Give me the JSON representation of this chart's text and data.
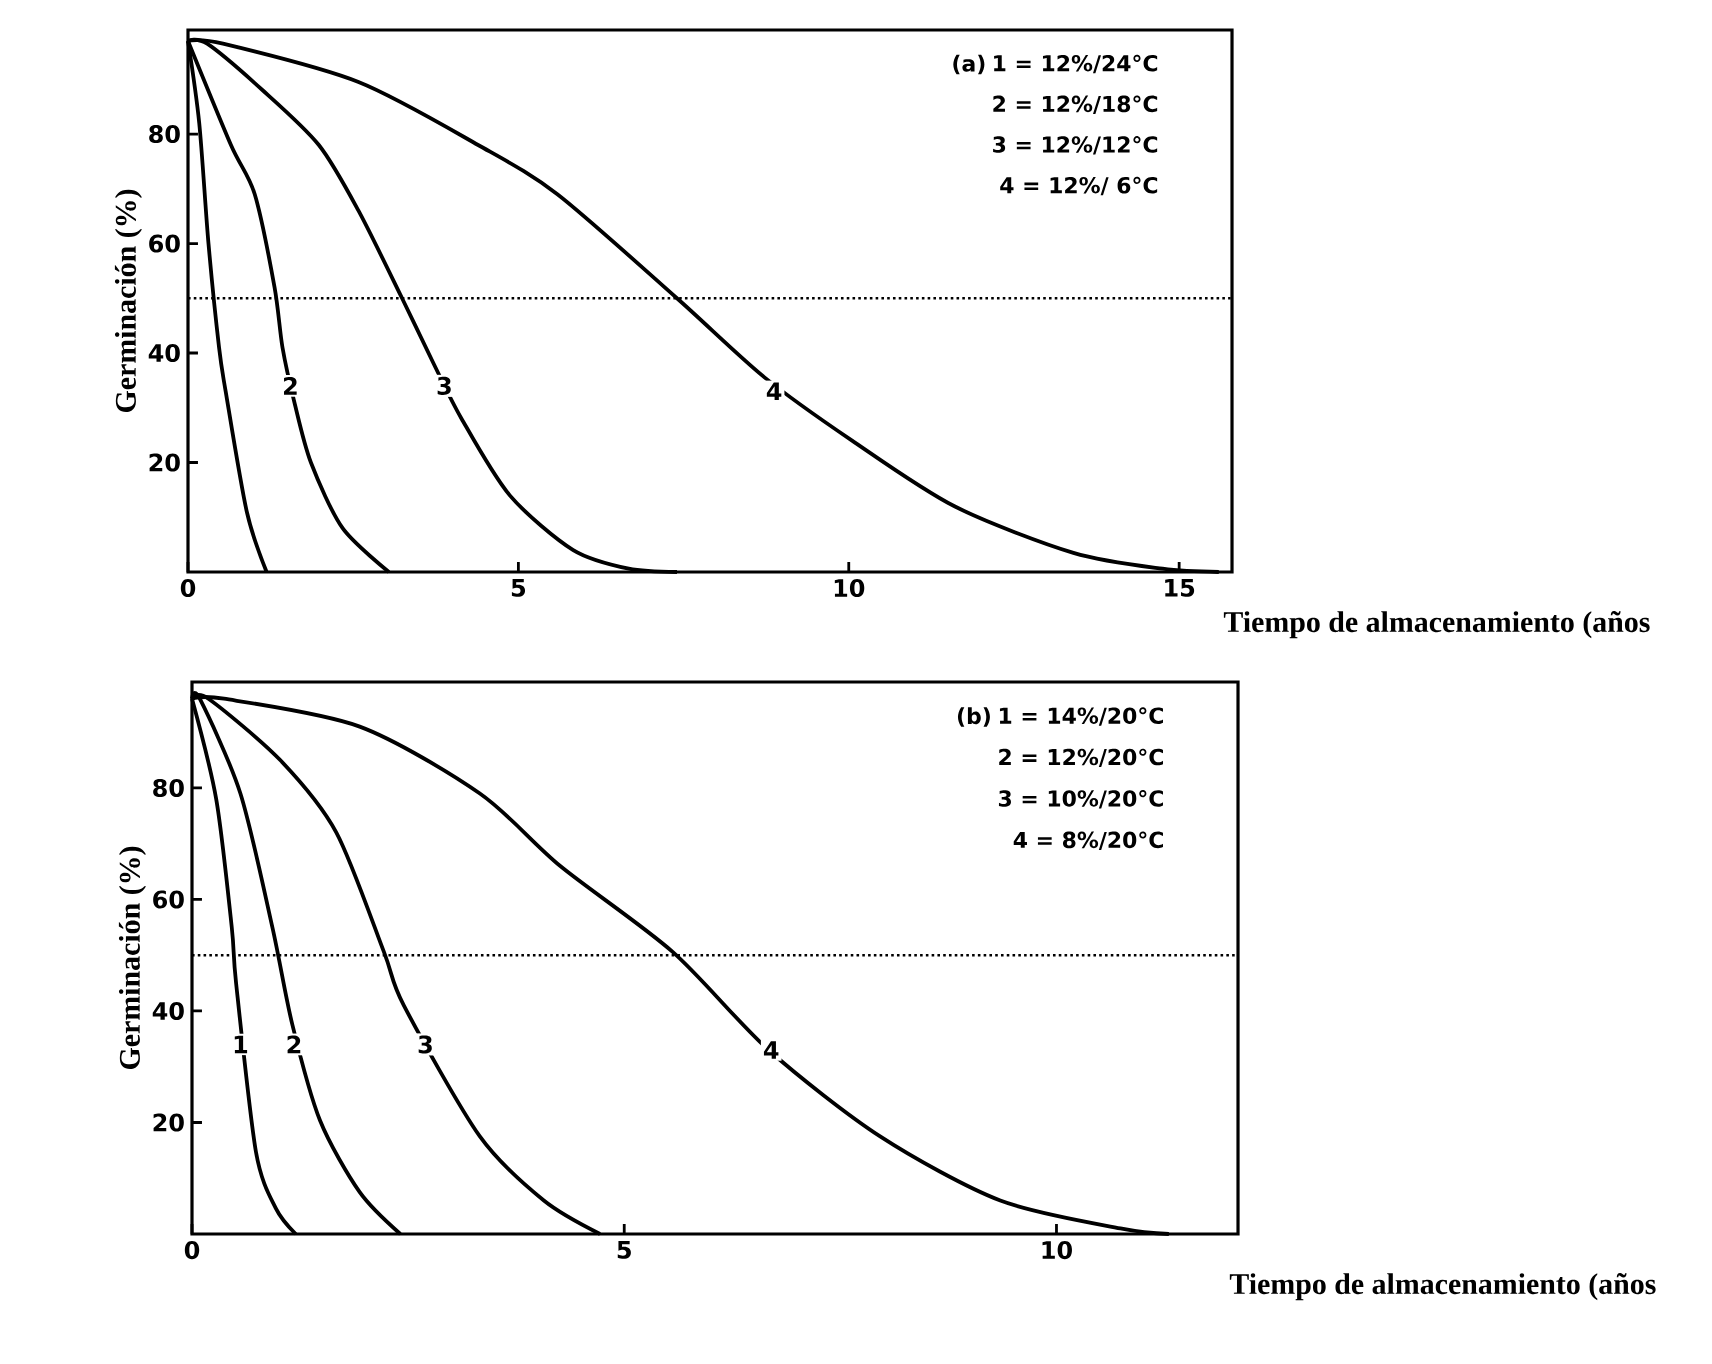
{
  "chart_data": [
    {
      "type": "line",
      "xlabel": "Tiempo de almacenamiento (años",
      "ylabel": "Germinación (%)",
      "xlim": [
        0,
        15.8
      ],
      "ylim": [
        0,
        99
      ],
      "xticks": [
        0,
        5,
        10,
        15
      ],
      "yticks": [
        20,
        40,
        60,
        80
      ],
      "series": [
        {
          "color": "#000000",
          "x": [
            0,
            0.17,
            0.31,
            0.47,
            0.57,
            0.89,
            1.19
          ],
          "values": [
            97,
            82,
            60,
            41,
            33,
            11,
            0
          ]
        },
        {
          "color": "#000000",
          "x": [
            0,
            0.65,
            1.01,
            1.31,
            1.43,
            1.61,
            1.86,
            2.34,
            3.04
          ],
          "values": [
            97,
            78,
            69,
            52,
            41,
            31,
            20,
            8,
            0
          ]
        },
        {
          "color": "#000000",
          "x": [
            0,
            0.29,
            1.13,
            1.98,
            2.58,
            3.24,
            3.72,
            4.14,
            4.87,
            5.83,
            6.67,
            7.4
          ],
          "values": [
            97,
            96.5,
            88,
            78,
            66,
            50,
            38,
            28,
            14,
            4,
            0.6,
            0
          ]
        },
        {
          "color": "#000000",
          "x": [
            0,
            0.53,
            2.58,
            4.39,
            5.59,
            7.4,
            8.72,
            10.05,
            11.6,
            13.4,
            14.75,
            15.6
          ],
          "values": [
            97,
            96.5,
            89.5,
            78,
            69,
            50,
            35.6,
            24,
            12,
            3.5,
            0.6,
            0
          ]
        }
      ],
      "ref_lines": [
        {
          "axis": "y",
          "value": 50,
          "line_style": "dotted"
        }
      ],
      "title": "(a)",
      "annotations": [
        "1 = 12%/24°C",
        "2 = 12%/18°C",
        "3 = 12%/12°C",
        "4 = 12%/ 6°C",
        {
          "text": "2",
          "x": 1.55,
          "y": 34
        },
        {
          "text": "3",
          "x": 3.88,
          "y": 34
        },
        {
          "text": "4",
          "x": 8.87,
          "y": 33
        }
      ]
    },
    {
      "type": "line",
      "xlabel": "Tiempo de almacenamiento (años",
      "ylabel": "Germinación (%)",
      "xlim": [
        0,
        12.1
      ],
      "ylim": [
        0,
        99
      ],
      "xticks": [
        0,
        5,
        10
      ],
      "yticks": [
        20,
        40,
        60,
        80
      ],
      "series": [
        {
          "color": "#000000",
          "x": [
            0,
            0.28,
            0.46,
            0.51,
            0.74,
            0.97,
            1.2
          ],
          "values": [
            96,
            78,
            55,
            45,
            14.7,
            4.6,
            0
          ]
        },
        {
          "color": "#000000",
          "x": [
            0,
            0.09,
            0.56,
            0.93,
            1.16,
            1.48,
            1.94,
            2.41
          ],
          "values": [
            96,
            96,
            79,
            55,
            37.6,
            20.4,
            7.5,
            0
          ]
        },
        {
          "color": "#000000",
          "x": [
            0,
            0.19,
            1.02,
            1.67,
            2.22,
            2.45,
            3.33,
            4.07,
            4.72
          ],
          "values": [
            96,
            96,
            85,
            72,
            50.6,
            41,
            17.5,
            6,
            0
          ]
        },
        {
          "color": "#000000",
          "x": [
            0,
            0.37,
            1.94,
            3.33,
            4.26,
            5.56,
            6.67,
            7.96,
            9.35,
            10.74,
            11.3
          ],
          "values": [
            96,
            96,
            91,
            79,
            66,
            50.6,
            33,
            17.5,
            6,
            1,
            0
          ]
        }
      ],
      "ref_lines": [
        {
          "axis": "y",
          "value": 50,
          "line_style": "dotted"
        }
      ],
      "title": "(b)",
      "annotations": [
        "1 = 14%/20°C",
        "2 = 12%/20°C",
        "3 = 10%/20°C",
        "4 = 8%/20°C",
        {
          "text": "1",
          "x": 0.56,
          "y": 34
        },
        {
          "text": "2",
          "x": 1.18,
          "y": 34
        },
        {
          "text": "3",
          "x": 2.7,
          "y": 34
        },
        {
          "text": "4",
          "x": 6.7,
          "y": 33
        }
      ]
    }
  ]
}
